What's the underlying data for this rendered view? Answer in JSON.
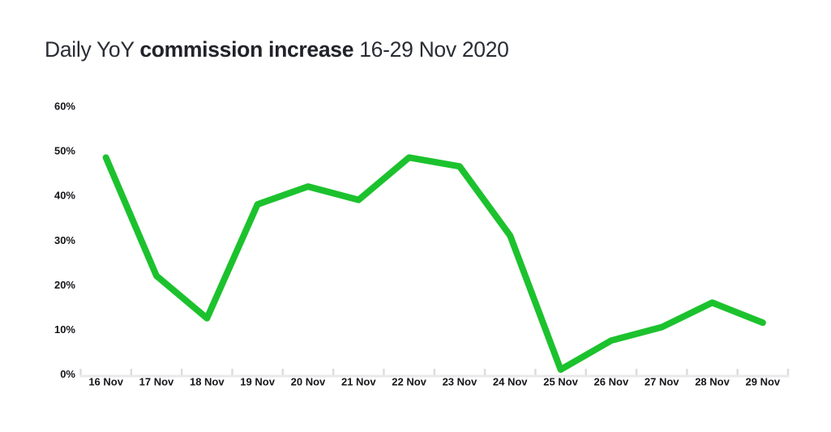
{
  "title": {
    "prefix": "Daily YoY ",
    "bold": "commission increase",
    "suffix": " 16-29 Nov 2020"
  },
  "colors": {
    "line": "#1cc22d",
    "axis_line": "#e9e9e9",
    "tick": "#dcdcdc",
    "axis_text": "#15161a",
    "title_text": "#2b2d35",
    "background": "#ffffff"
  },
  "chart_data": {
    "type": "line",
    "title": "Daily YoY commission increase 16-29 Nov 2020",
    "categories": [
      "16 Nov",
      "17 Nov",
      "18 Nov",
      "19 Nov",
      "20 Nov",
      "21 Nov",
      "22 Nov",
      "23 Nov",
      "24 Nov",
      "25 Nov",
      "26 Nov",
      "27 Nov",
      "28 Nov",
      "29 Nov"
    ],
    "values": [
      48.5,
      22,
      12.5,
      38,
      42,
      39,
      48.5,
      46.5,
      31,
      1,
      7.5,
      10.5,
      16,
      11.5
    ],
    "xlabel": "",
    "ylabel": "",
    "ylim": [
      0,
      60
    ],
    "y_ticks": [
      {
        "value": 0,
        "label": "0%"
      },
      {
        "value": 10,
        "label": "10%"
      },
      {
        "value": 20,
        "label": "20%"
      },
      {
        "value": 30,
        "label": "30%"
      },
      {
        "value": 40,
        "label": "40%"
      },
      {
        "value": 50,
        "label": "50%"
      },
      {
        "value": 60,
        "label": "60%"
      }
    ],
    "grid": false,
    "legend": false,
    "line_width": 8
  }
}
